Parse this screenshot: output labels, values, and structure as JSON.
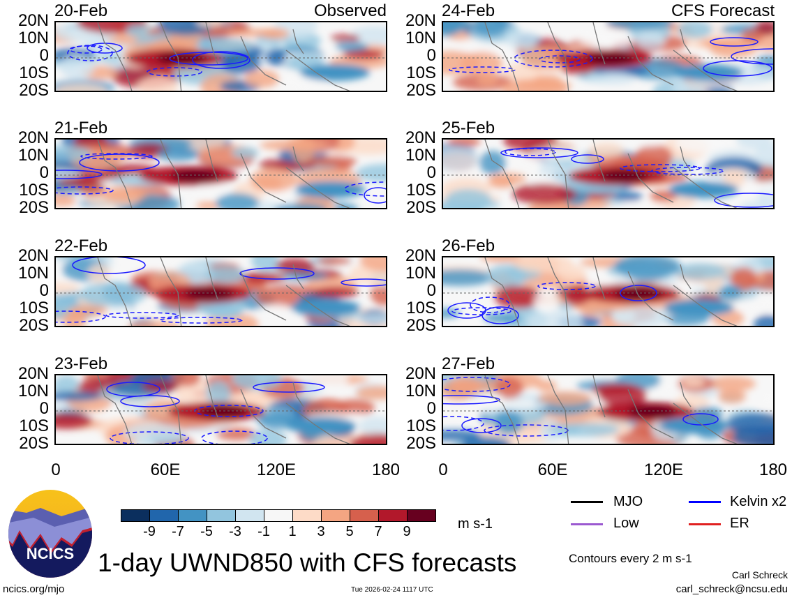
{
  "title": "1-day UWND850 with CFS forecasts",
  "left_header": "Observed",
  "right_header": "CFS Forecast",
  "panels_left": [
    "20-Feb",
    "21-Feb",
    "22-Feb",
    "23-Feb"
  ],
  "panels_right": [
    "24-Feb",
    "25-Feb",
    "26-Feb",
    "27-Feb"
  ],
  "y_ticks": [
    "20N",
    "10N",
    "0",
    "10S",
    "20S"
  ],
  "x_ticks": [
    "0",
    "60E",
    "120E",
    "180"
  ],
  "colorbar": {
    "ticks": [
      "-9",
      "-7",
      "-5",
      "-3",
      "-1",
      "1",
      "3",
      "5",
      "7",
      "9"
    ],
    "units": "m s-1",
    "colors": [
      "#0b2f5e",
      "#2166ac",
      "#4393c3",
      "#92c5de",
      "#d1e5f0",
      "#f7f7f7",
      "#fddbc7",
      "#f4a582",
      "#d6604d",
      "#b2182b",
      "#67001f"
    ]
  },
  "legend": {
    "mjo": "MJO",
    "kelvin": "Kelvin x2",
    "low": "Low",
    "er": "ER",
    "colors": {
      "mjo": "#000000",
      "kelvin": "#0000ff",
      "low": "#9b59d0",
      "er": "#e02020"
    }
  },
  "contour_note": "Contours every 2 m s-1",
  "logo_text": "NCICS",
  "url": "ncics.org/mjo",
  "timestamp": "Tue 2026-02-24 1117 UTC",
  "author": "Carl Schreck",
  "email": "carl_schreck@ncsu.edu"
}
